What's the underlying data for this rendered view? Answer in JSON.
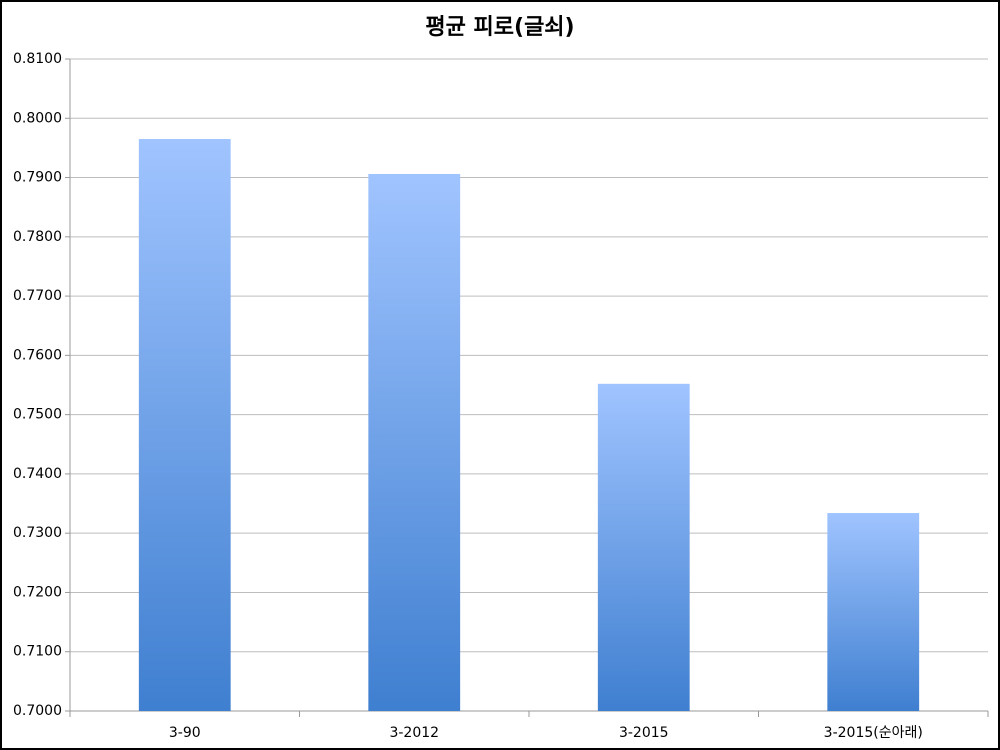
{
  "chart_data": {
    "type": "bar",
    "title": "평균 피로(글쇠)",
    "categories": [
      "3-90",
      "3-2012",
      "3-2015",
      "3-2015(순아래)"
    ],
    "values": [
      0.7965,
      0.7906,
      0.7552,
      0.7334
    ],
    "color": "#3f7fd0",
    "color_top": "#a0c4ff",
    "ylim": [
      0.7,
      0.81
    ],
    "yticks": [
      {
        "value": 0.7,
        "label": "0.7000"
      },
      {
        "value": 0.71,
        "label": "0.7100"
      },
      {
        "value": 0.72,
        "label": "0.7200"
      },
      {
        "value": 0.73,
        "label": "0.7300"
      },
      {
        "value": 0.74,
        "label": "0.7400"
      },
      {
        "value": 0.75,
        "label": "0.7500"
      },
      {
        "value": 0.76,
        "label": "0.7600"
      },
      {
        "value": 0.77,
        "label": "0.7700"
      },
      {
        "value": 0.78,
        "label": "0.7800"
      },
      {
        "value": 0.79,
        "label": "0.7900"
      },
      {
        "value": 0.8,
        "label": "0.8000"
      },
      {
        "value": 0.81,
        "label": "0.8100"
      }
    ],
    "grid": true
  }
}
